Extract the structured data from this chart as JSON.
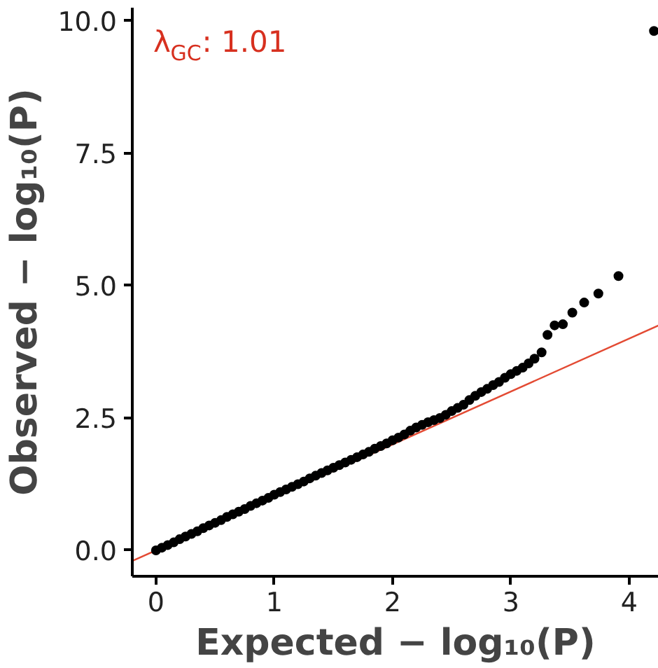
{
  "chart_data": {
    "type": "scatter",
    "xlabel": "Expected − log₁₀(P)",
    "ylabel": "Observed − log₁₀(P)",
    "annotations": [
      "λ$_{GC}$: 1.01"
    ],
    "xlim": [
      -0.2,
      4.25
    ],
    "ylim": [
      -0.49,
      10.25
    ],
    "xticks": [
      0,
      1,
      2,
      3,
      4
    ],
    "yticks": [
      {
        "value": 0,
        "label": "0.0"
      },
      {
        "value": 2.5,
        "label": "2.5"
      },
      {
        "value": 5,
        "label": "5.0"
      },
      {
        "value": 7.5,
        "label": "7.5"
      },
      {
        "value": 10,
        "label": "10.0"
      }
    ],
    "grid": false,
    "series": [
      {
        "type": "line",
        "color": "#e34a33",
        "x": [
          -0.2,
          4.25
        ],
        "values": [
          -0.2,
          4.25
        ]
      },
      {
        "color": "#000000",
        "x": [
          0.0,
          0.05,
          0.1,
          0.15,
          0.2,
          0.25,
          0.3,
          0.35,
          0.4,
          0.45,
          0.5,
          0.55,
          0.6,
          0.65,
          0.7,
          0.75,
          0.8,
          0.85,
          0.9,
          0.95,
          1.0,
          1.05,
          1.1,
          1.15,
          1.2,
          1.25,
          1.3,
          1.35,
          1.4,
          1.45,
          1.5,
          1.55,
          1.6,
          1.65,
          1.7,
          1.75,
          1.8,
          1.85,
          1.9,
          1.95,
          2.0,
          2.05,
          2.1,
          2.15,
          2.2,
          2.25,
          2.3,
          2.35,
          2.4,
          2.45,
          2.5,
          2.55,
          2.6,
          2.65,
          2.7,
          2.75,
          2.8,
          2.85,
          2.9,
          2.95,
          3.0,
          3.05,
          3.1,
          3.15,
          3.2,
          3.26,
          3.31,
          3.37,
          3.44,
          3.52,
          3.62,
          3.74,
          3.91,
          4.21
        ],
        "values": [
          0.0,
          0.05,
          0.1,
          0.15,
          0.21,
          0.26,
          0.31,
          0.36,
          0.42,
          0.47,
          0.52,
          0.57,
          0.63,
          0.68,
          0.73,
          0.78,
          0.84,
          0.89,
          0.94,
          0.99,
          1.05,
          1.1,
          1.15,
          1.2,
          1.25,
          1.3,
          1.36,
          1.41,
          1.46,
          1.51,
          1.56,
          1.61,
          1.66,
          1.71,
          1.76,
          1.81,
          1.86,
          1.92,
          1.97,
          2.02,
          2.08,
          2.13,
          2.19,
          2.26,
          2.32,
          2.37,
          2.42,
          2.46,
          2.5,
          2.56,
          2.63,
          2.69,
          2.75,
          2.84,
          2.92,
          2.99,
          3.05,
          3.12,
          3.18,
          3.26,
          3.33,
          3.39,
          3.45,
          3.53,
          3.62,
          3.74,
          4.07,
          4.25,
          4.27,
          4.49,
          4.68,
          4.85,
          5.18,
          9.81
        ]
      }
    ]
  }
}
